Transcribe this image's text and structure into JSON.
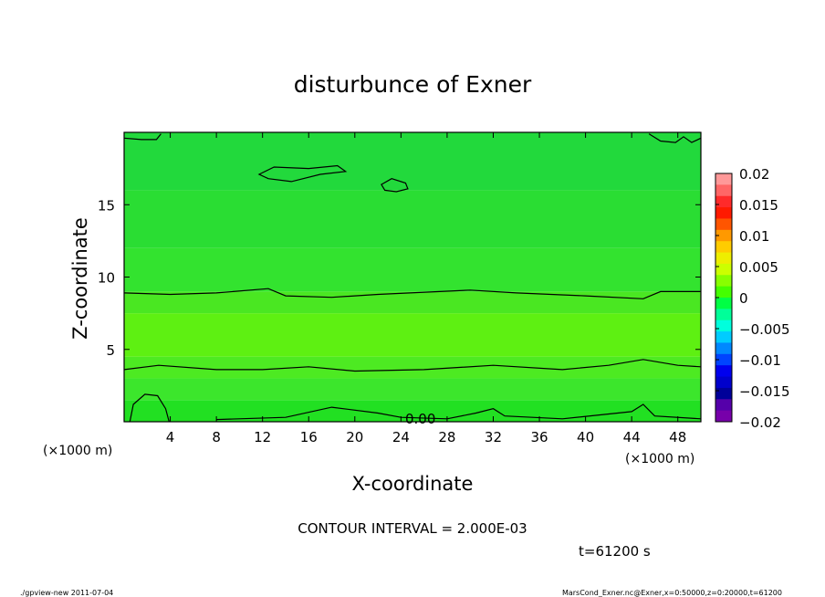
{
  "chart_data": {
    "type": "heatmap",
    "title": "disturbunce of Exner",
    "xlabel": "X-coordinate",
    "ylabel": "Z-coordinate",
    "x_unit": "(×1000 m)",
    "y_unit": "(×1000 m)",
    "xlim": [
      0,
      50
    ],
    "ylim": [
      0,
      20
    ],
    "x_ticks": [
      4,
      8,
      12,
      16,
      20,
      24,
      28,
      32,
      36,
      40,
      44,
      48
    ],
    "y_ticks": [
      5,
      10,
      15
    ],
    "contour_label": "0.00",
    "contour_interval_text": "CONTOUR INTERVAL = 2.000E-03",
    "time_text": "t=61200 s",
    "colorbar": {
      "ticks": [
        "0.02",
        "0.015",
        "0.01",
        "0.005",
        "0",
        "−0.005",
        "−0.01",
        "−0.015",
        "−0.02"
      ],
      "colors": [
        "#ff9999",
        "#ff6666",
        "#ff2a2a",
        "#ff1a00",
        "#ff5500",
        "#ff9900",
        "#ffcc00",
        "#eeee00",
        "#ccff00",
        "#88ff00",
        "#44ff00",
        "#00ff44",
        "#00ff99",
        "#00ffdd",
        "#00ccff",
        "#0088ff",
        "#0044ff",
        "#0000ee",
        "#0000cc",
        "#000099",
        "#5500aa",
        "#7700aa"
      ]
    },
    "field_bands": [
      {
        "z_from": 0,
        "z_to": 1.5,
        "color": "#22e022"
      },
      {
        "z_from": 1.5,
        "z_to": 3,
        "color": "#3ce62c"
      },
      {
        "z_from": 3,
        "z_to": 4.5,
        "color": "#4dea22"
      },
      {
        "z_from": 4.5,
        "z_to": 7.5,
        "color": "#5ef012"
      },
      {
        "z_from": 7.5,
        "z_to": 9,
        "color": "#4ae722"
      },
      {
        "z_from": 9,
        "z_to": 12,
        "color": "#33e32f"
      },
      {
        "z_from": 12,
        "z_to": 16,
        "color": "#2add33"
      },
      {
        "z_from": 16,
        "z_to": 20,
        "color": "#22d93c"
      }
    ],
    "contours": [
      {
        "name": "contour-z9",
        "points": [
          [
            0,
            8.9
          ],
          [
            4,
            8.8
          ],
          [
            8,
            8.9
          ],
          [
            12.5,
            9.2
          ],
          [
            14,
            8.7
          ],
          [
            18,
            8.6
          ],
          [
            22,
            8.8
          ],
          [
            30,
            9.1
          ],
          [
            34,
            8.9
          ],
          [
            40,
            8.7
          ],
          [
            45,
            8.5
          ],
          [
            46.5,
            9.0
          ],
          [
            50,
            9.0
          ]
        ]
      },
      {
        "name": "contour-z3.7",
        "points": [
          [
            0,
            3.6
          ],
          [
            3,
            3.9
          ],
          [
            8,
            3.6
          ],
          [
            12,
            3.6
          ],
          [
            16,
            3.8
          ],
          [
            20,
            3.5
          ],
          [
            26,
            3.6
          ],
          [
            32,
            3.9
          ],
          [
            38,
            3.6
          ],
          [
            42,
            3.9
          ],
          [
            45,
            4.3
          ],
          [
            48,
            3.9
          ],
          [
            50,
            3.8
          ]
        ]
      },
      {
        "name": "contour-bottom",
        "points": [
          [
            8,
            0.15
          ],
          [
            14,
            0.3
          ],
          [
            18,
            1.0
          ],
          [
            22,
            0.6
          ],
          [
            24,
            0.3
          ],
          [
            28,
            0.2
          ],
          [
            30.5,
            0.6
          ],
          [
            32,
            0.9
          ],
          [
            33,
            0.4
          ],
          [
            38,
            0.2
          ],
          [
            44,
            0.7
          ],
          [
            45,
            1.2
          ],
          [
            46,
            0.4
          ],
          [
            50,
            0.2
          ]
        ]
      },
      {
        "name": "contour-bottom-left-blob",
        "points": [
          [
            0.5,
            0
          ],
          [
            0.8,
            1.2
          ],
          [
            1.8,
            1.9
          ],
          [
            2.9,
            1.8
          ],
          [
            3.6,
            0.9
          ],
          [
            3.9,
            0
          ]
        ]
      },
      {
        "name": "contour-top-blob-1",
        "closed": true,
        "points": [
          [
            11.7,
            17.1
          ],
          [
            13,
            17.6
          ],
          [
            16,
            17.5
          ],
          [
            18.5,
            17.7
          ],
          [
            19.2,
            17.3
          ],
          [
            17,
            17.1
          ],
          [
            14.5,
            16.6
          ],
          [
            12.5,
            16.8
          ]
        ]
      },
      {
        "name": "contour-top-blob-2",
        "closed": true,
        "points": [
          [
            22.3,
            16.4
          ],
          [
            23.2,
            16.8
          ],
          [
            24.4,
            16.5
          ],
          [
            24.6,
            16.1
          ],
          [
            23.6,
            15.9
          ],
          [
            22.6,
            16.0
          ]
        ]
      },
      {
        "name": "contour-top-left",
        "points": [
          [
            0,
            19.6
          ],
          [
            1.5,
            19.5
          ],
          [
            2.8,
            19.5
          ],
          [
            3.2,
            19.9
          ]
        ]
      },
      {
        "name": "contour-top-right",
        "points": [
          [
            45.5,
            19.9
          ],
          [
            46.5,
            19.4
          ],
          [
            47.8,
            19.3
          ],
          [
            48.5,
            19.7
          ],
          [
            49.2,
            19.3
          ],
          [
            50,
            19.6
          ]
        ]
      }
    ]
  },
  "footer": {
    "left": "./gpview-new  2011-07-04",
    "right": "MarsCond_Exner.nc@Exner,x=0:50000,z=0:20000,t=61200"
  }
}
